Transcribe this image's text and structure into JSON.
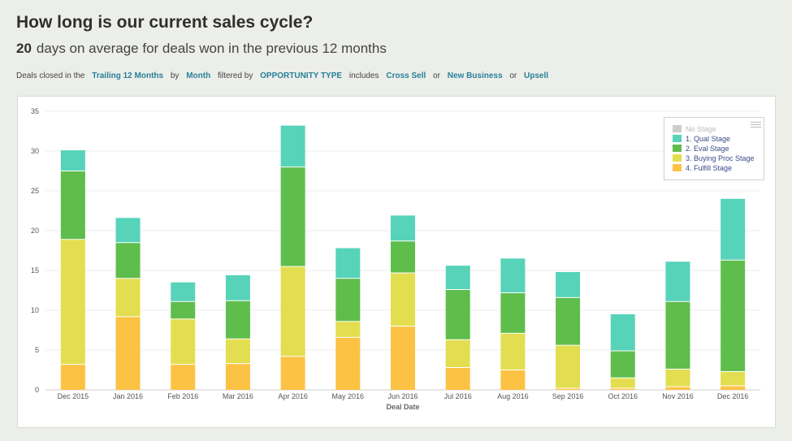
{
  "header": {
    "title": "How long is our current sales cycle?",
    "metric_value": "20",
    "metric_text": "days on average for deals won in the previous 12 months"
  },
  "filter": {
    "t1": "Deals closed in the",
    "period": "Trailing 12 Months",
    "t2": "by",
    "granularity": "Month",
    "t3": "filtered by",
    "field": "OPPORTUNITY TYPE",
    "t4": "includes",
    "v1": "Cross Sell",
    "t5": "or",
    "v2": "New Business",
    "t6": "or",
    "v3": "Upsell"
  },
  "chart_data": {
    "type": "bar",
    "stacked": true,
    "xlabel": "Deal Date",
    "ylabel": "",
    "ylim": [
      0,
      35
    ],
    "yticks": [
      0,
      5,
      10,
      15,
      20,
      25,
      30,
      35
    ],
    "grid": true,
    "legend_position": "top-right",
    "categories": [
      "Dec 2015",
      "Jan 2016",
      "Feb 2016",
      "Mar 2016",
      "Apr 2016",
      "May 2016",
      "Jun 2016",
      "Jul 2016",
      "Aug 2016",
      "Sep 2016",
      "Oct 2016",
      "Nov 2016",
      "Dec 2016"
    ],
    "series": [
      {
        "name": "No Stage",
        "color": "#cccccc",
        "values": [
          0,
          0,
          0,
          0,
          0,
          0,
          0,
          0,
          0,
          0,
          0,
          0,
          0
        ],
        "disabled": true
      },
      {
        "name": "4. Fulfill Stage",
        "color": "#fcc244",
        "values": [
          3.2,
          9.2,
          3.2,
          3.3,
          4.2,
          6.6,
          8.0,
          2.8,
          2.5,
          0.2,
          0.2,
          0.4,
          0.5
        ]
      },
      {
        "name": "3. Buying Proc Stage",
        "color": "#e3de4f",
        "values": [
          15.7,
          4.8,
          5.7,
          3.1,
          11.3,
          2.0,
          6.7,
          3.5,
          4.6,
          5.4,
          1.3,
          2.2,
          1.8
        ]
      },
      {
        "name": "2. Eval Stage",
        "color": "#5fbd4c",
        "values": [
          8.6,
          4.5,
          2.2,
          4.8,
          12.5,
          5.4,
          4.0,
          6.3,
          5.1,
          6.0,
          3.4,
          8.5,
          14.0
        ]
      },
      {
        "name": "1. Qual Stage",
        "color": "#57d3b9",
        "values": [
          2.6,
          3.1,
          2.4,
          3.2,
          5.2,
          3.8,
          3.2,
          3.0,
          4.3,
          3.2,
          4.6,
          5.0,
          7.7
        ]
      }
    ]
  }
}
